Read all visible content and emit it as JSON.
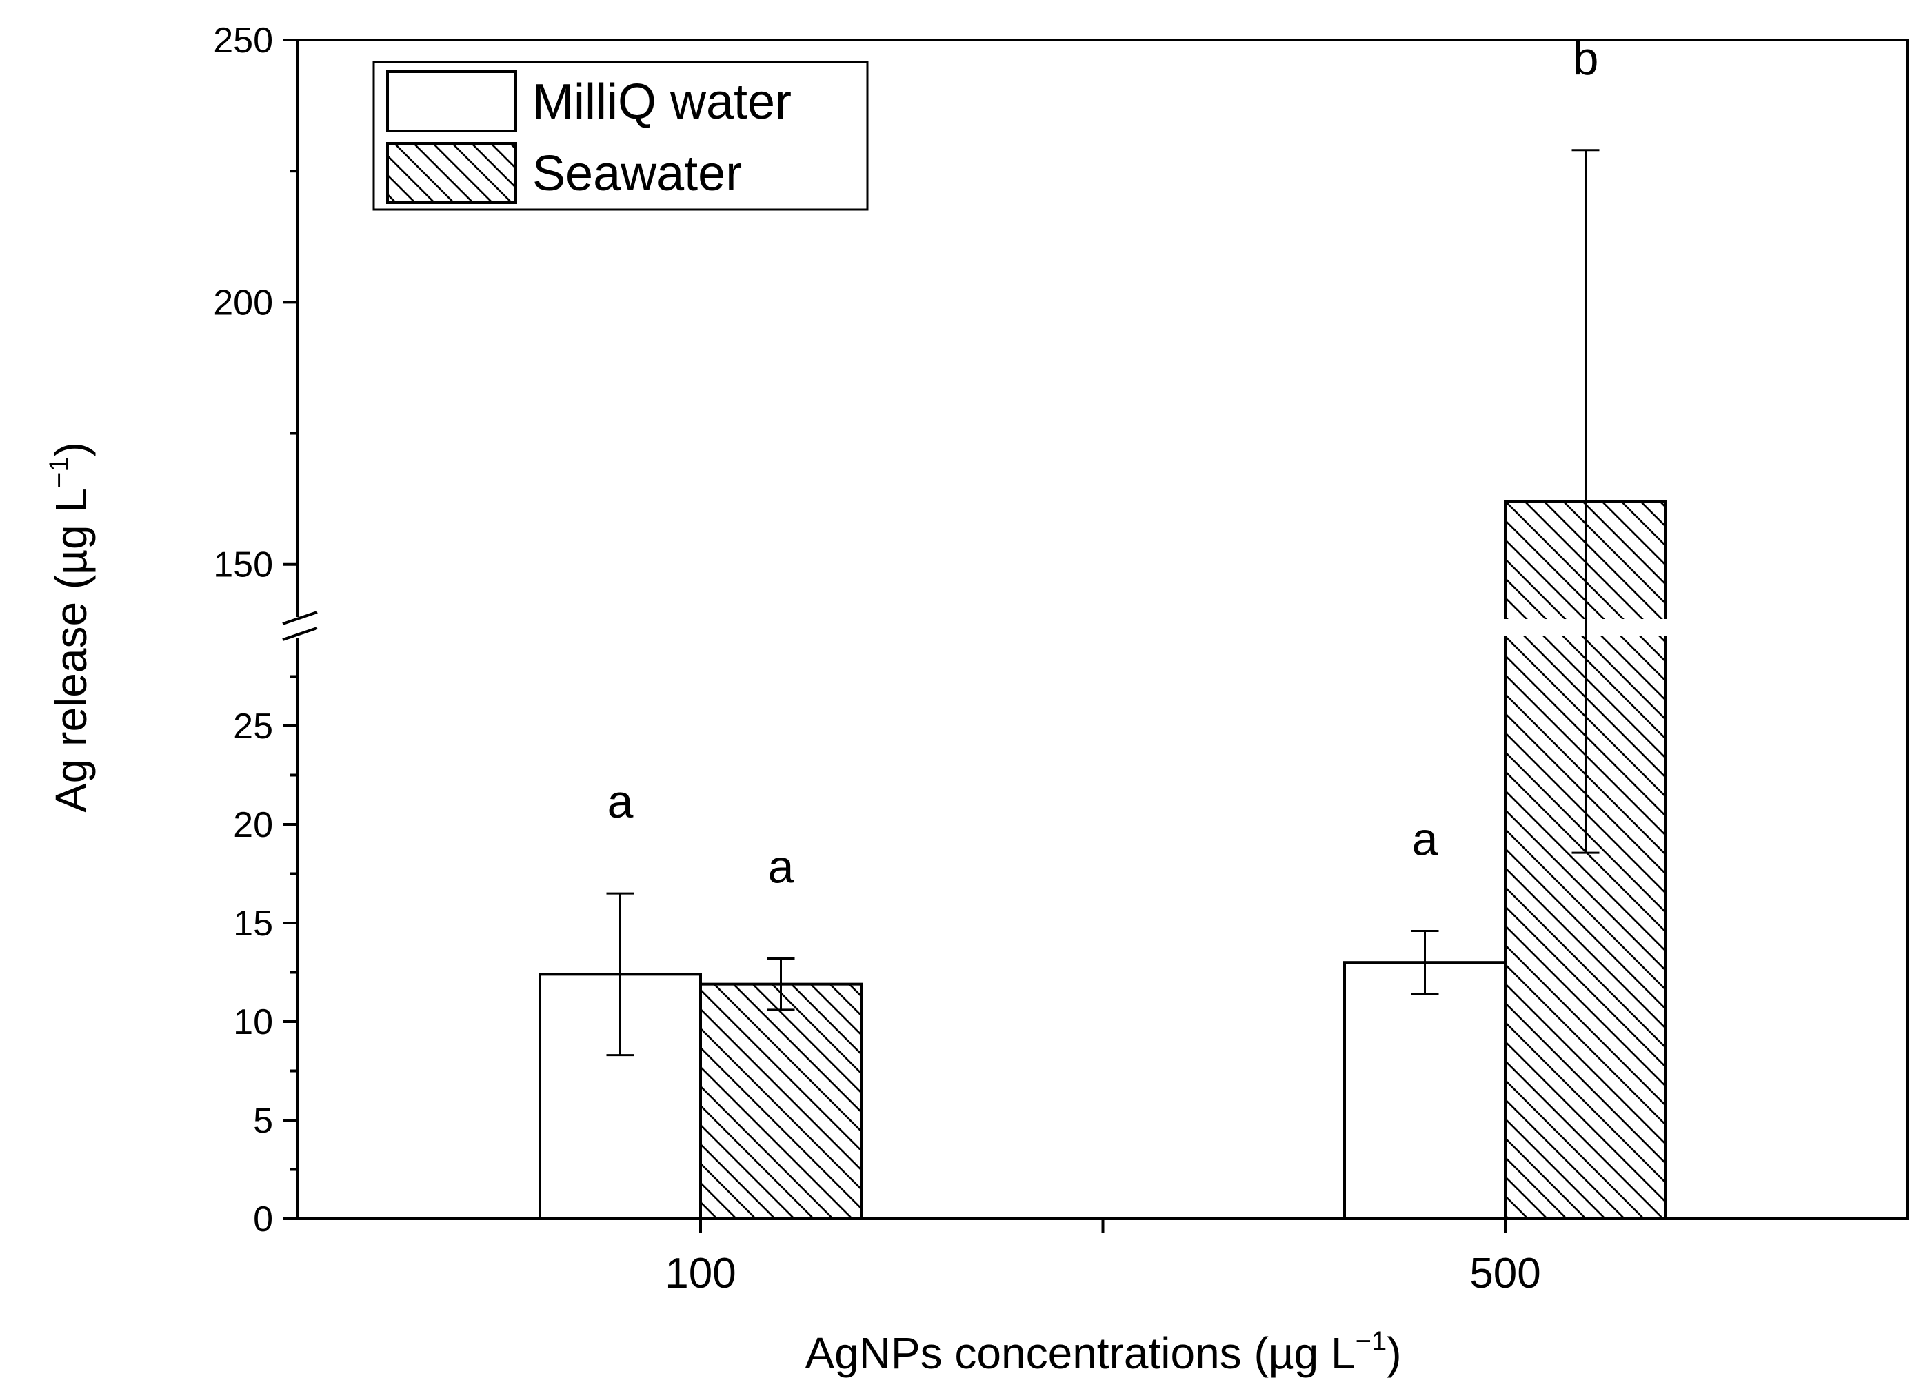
{
  "chart_data": {
    "type": "bar",
    "title": "",
    "xlabel": "AgNPs concentrations (µg L",
    "xlabel_sup": "−1",
    "xlabel_end": ")",
    "ylabel": "Ag release  (µg L",
    "ylabel_sup": "−1",
    "ylabel_end": ")",
    "categories": [
      "100",
      "500"
    ],
    "broken_axis": {
      "lower_range": [
        0,
        30
      ],
      "upper_range": [
        138,
        250
      ],
      "lower_ticks": [
        "0",
        "5",
        "10",
        "15",
        "20",
        "25"
      ],
      "upper_ticks": [
        "150",
        "200",
        "250"
      ]
    },
    "series": [
      {
        "name": "MilliQ water",
        "pattern": "none",
        "values": [
          12.4,
          13.0
        ],
        "errors": [
          4.1,
          1.6
        ],
        "significance": [
          "a",
          "a"
        ]
      },
      {
        "name": "Seawater",
        "pattern": "hatch",
        "values": [
          11.9,
          162
        ],
        "errors": [
          1.3,
          67
        ],
        "significance": [
          "a",
          "b"
        ]
      }
    ],
    "legend_position": "top-left",
    "grid": false
  }
}
